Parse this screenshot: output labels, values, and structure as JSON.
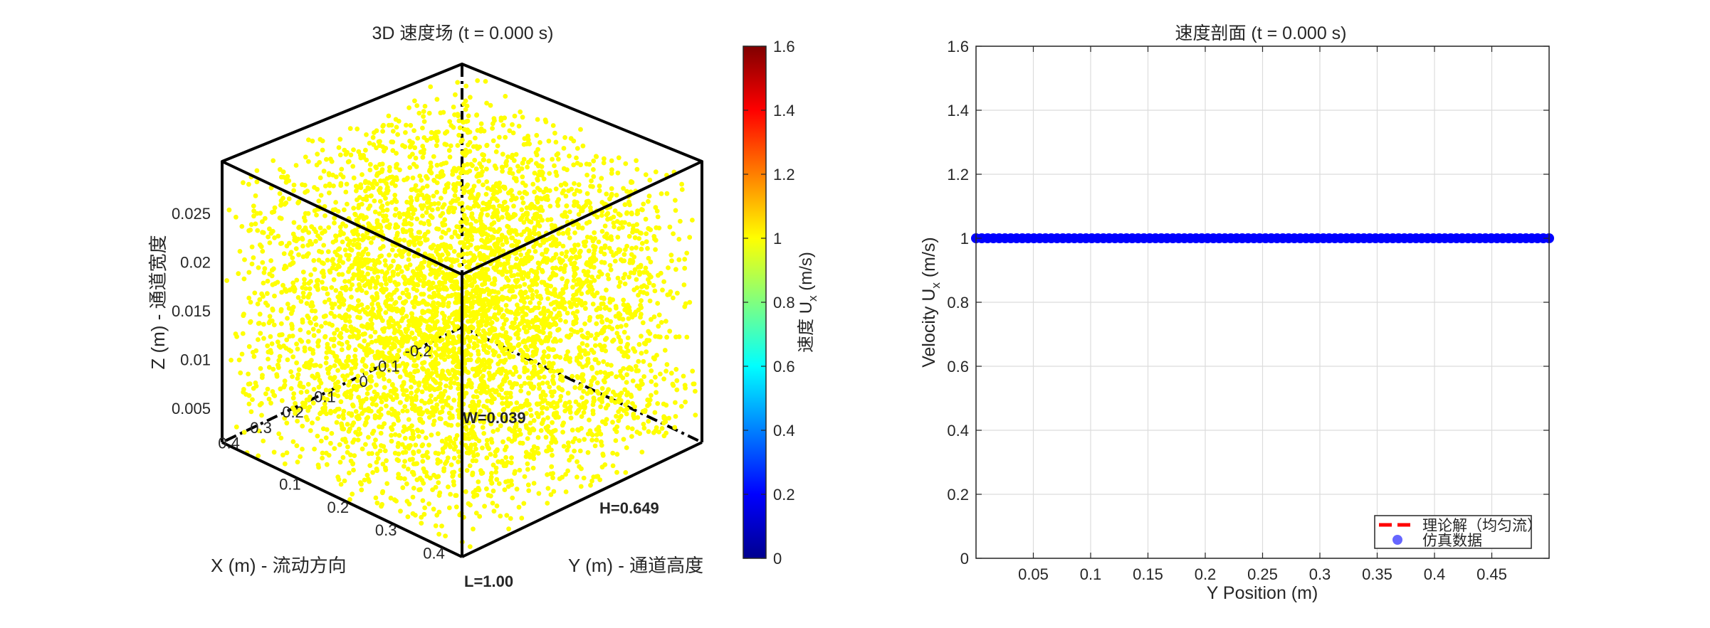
{
  "figure": {
    "left_panel": {
      "title": "3D 速度场 (t = 0.000 s)"
    },
    "right_panel": {
      "title": "速度剖面 (t = 0.000 s)"
    }
  },
  "chart_data": [
    {
      "type": "scatter",
      "title": "3D 速度场 (t = 0.000 s)",
      "xlabel": "X (m) - 流动方向",
      "ylabel": "Y (m) - 通道高度",
      "zlabel": "Z (m) - 通道宽度",
      "x_ticks": [
        "-0.2",
        "-0.1",
        "0",
        "0.1",
        "0.2",
        "0.3",
        "0.4"
      ],
      "y_ticks": [
        "0.1",
        "0.2",
        "0.3",
        "0.4"
      ],
      "z_ticks": [
        "0.005",
        "0.01",
        "0.015",
        "0.02",
        "0.025"
      ],
      "xlim": [
        -0.25,
        0.5
      ],
      "ylim": [
        0,
        0.5
      ],
      "zlim": [
        0.0015,
        0.0285
      ],
      "point_value": 1.0,
      "point_color": "#ffff00",
      "point_count_approx": 5000,
      "annotations": [
        "W=0.039",
        "H=0.649",
        "L=1.00"
      ],
      "colorbar": {
        "label": "速度  U",
        "label_sub": "x",
        "label_unit": " (m/s)",
        "range": [
          0,
          1.6
        ],
        "ticks": [
          "0",
          "0.2",
          "0.4",
          "0.6",
          "0.8",
          "1",
          "1.2",
          "1.4",
          "1.6"
        ],
        "colormap": "jet"
      }
    },
    {
      "type": "scatter",
      "title": "速度剖面 (t = 0.000 s)",
      "xlabel": "Y Position (m)",
      "ylabel": "Velocity  U",
      "ylabel_sub": "x",
      "ylabel_unit": " (m/s)",
      "xlim": [
        0,
        0.5
      ],
      "ylim": [
        0,
        1.6
      ],
      "x_ticks": [
        "0.05",
        "0.1",
        "0.15",
        "0.2",
        "0.25",
        "0.3",
        "0.35",
        "0.4",
        "0.45"
      ],
      "y_ticks": [
        "0",
        "0.2",
        "0.4",
        "0.6",
        "0.8",
        "1",
        "1.2",
        "1.4",
        "1.6"
      ],
      "grid": true,
      "legend_position": "bottom-right",
      "series": [
        {
          "name": "理论解（均匀流）",
          "style": "dashed-line",
          "color": "#ff0000",
          "x": [
            0,
            0.5
          ],
          "y": [
            1.0,
            1.0
          ]
        },
        {
          "name": "仿真数据",
          "style": "markers",
          "color": "#0000ff",
          "x_start": 0.0,
          "x_end": 0.5,
          "point_count": 100,
          "y_constant": 1.0
        }
      ]
    }
  ]
}
